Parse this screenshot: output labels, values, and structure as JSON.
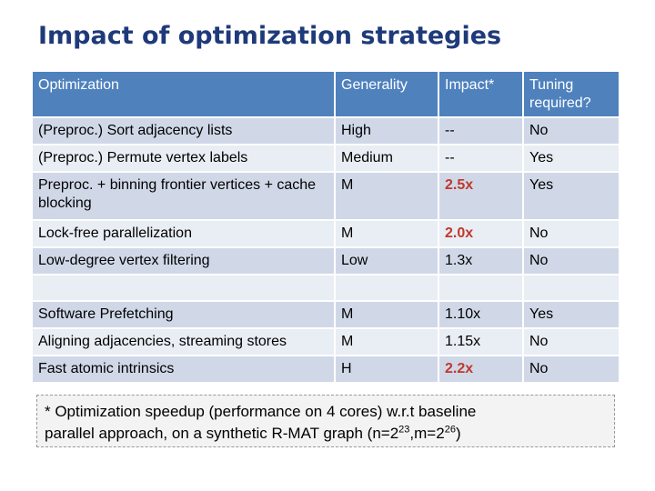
{
  "title": "Impact of optimization strategies",
  "table": {
    "headers": [
      "Optimization",
      "Generality",
      "Impact*",
      "Tuning required?"
    ],
    "rows": [
      {
        "optimization": "(Preproc.) Sort adjacency lists",
        "generality": "High",
        "impact": "--",
        "tuning": "No",
        "highlight": false
      },
      {
        "optimization": "(Preproc.) Permute vertex labels",
        "generality": "Medium",
        "impact": "--",
        "tuning": "Yes",
        "highlight": false
      },
      {
        "optimization": "Preproc. + binning frontier vertices + cache blocking",
        "generality": "M",
        "impact": "2.5x",
        "tuning": "Yes",
        "highlight": true
      },
      {
        "optimization": "Lock-free parallelization",
        "generality": "M",
        "impact": "2.0x",
        "tuning": "No",
        "highlight": true
      },
      {
        "optimization": "Low-degree vertex filtering",
        "generality": "Low",
        "impact": "1.3x",
        "tuning": "No",
        "highlight": false
      },
      {
        "optimization": "",
        "generality": "",
        "impact": "",
        "tuning": "",
        "highlight": false
      },
      {
        "optimization": "Software Prefetching",
        "generality": "M",
        "impact": "1.10x",
        "tuning": "Yes",
        "highlight": false
      },
      {
        "optimization": "Aligning adjacencies, streaming stores",
        "generality": "M",
        "impact": "1.15x",
        "tuning": "No",
        "highlight": false
      },
      {
        "optimization": "Fast atomic intrinsics",
        "generality": "H",
        "impact": "2.2x",
        "tuning": "No",
        "highlight": true
      }
    ]
  },
  "footnote": {
    "line1": "* Optimization speedup (performance on 4 cores) w.r.t baseline",
    "line2_pre": "parallel approach, on a synthetic R-MAT graph (n=2",
    "n_exp": "23",
    "mid": ",m=2",
    "m_exp": "26",
    "end": ")"
  },
  "colors": {
    "title": "#1f3a7a",
    "header_bg": "#4f81bd",
    "row_odd": "#d0d8e8",
    "row_even": "#e9edf4",
    "highlight": "#c0392b"
  }
}
